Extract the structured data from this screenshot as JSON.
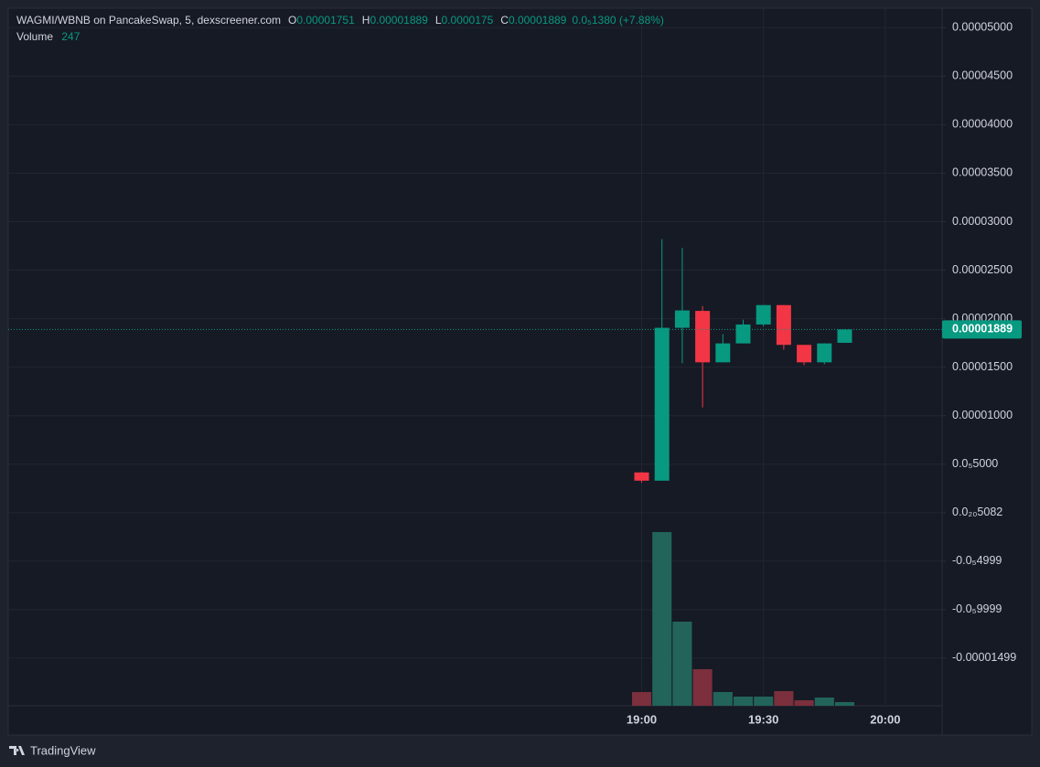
{
  "chart_data": {
    "type": "candlestick",
    "symbol": "WAGMI/WBNB on PancakeSwap, 5, dexscreener.com",
    "ohlc_labels": [
      "O",
      "H",
      "L",
      "C"
    ],
    "change_label": "0.0₅1380 (+7.88%)",
    "volume_label": "Volume",
    "x": [
      "19:00",
      "19:05",
      "19:10",
      "19:15",
      "19:20",
      "19:25",
      "19:30",
      "19:35",
      "19:40",
      "19:45",
      "19:50"
    ],
    "open": [
      4.15e-06,
      3.3e-06,
      1.906e-05,
      2.08e-05,
      1.55e-05,
      1.745e-05,
      1.94e-05,
      2.14e-05,
      1.73e-05,
      1.55e-05,
      1.751e-05
    ],
    "high": [
      4.2e-06,
      2.82e-05,
      2.73e-05,
      2.13e-05,
      1.84e-05,
      1.99e-05,
      2.14e-05,
      2.14e-05,
      1.73e-05,
      1.745e-05,
      1.889e-05
    ],
    "low": [
      3.1e-06,
      3.3e-06,
      1.54e-05,
      1.085e-05,
      1.55e-05,
      1.745e-05,
      1.92e-05,
      1.68e-05,
      1.52e-05,
      1.53e-05,
      1.75e-05
    ],
    "close": [
      3.3e-06,
      1.906e-05,
      2.085e-05,
      1.55e-05,
      1.745e-05,
      1.94e-05,
      2.14e-05,
      1.73e-05,
      1.55e-05,
      1.745e-05,
      1.889e-05
    ],
    "volume": [
      926,
      11733,
      5681,
      2470,
      926,
      618,
      618,
      988,
      371,
      556,
      247
    ],
    "up_color": "#089981",
    "down_color": "#f23645",
    "up_volume_color": "#22645a",
    "down_volume_color": "#7c2f3c",
    "xlim": [
      "16:24",
      "20:14"
    ],
    "xticks": [
      "19:00",
      "19:30",
      "20:00"
    ],
    "ylim": [
      -1.99e-05,
      5.2e-05
    ],
    "yticks": [
      {
        "value": 5e-05,
        "label": "0.00005000"
      },
      {
        "value": 4.5e-05,
        "label": "0.00004500"
      },
      {
        "value": 4e-05,
        "label": "0.00004000"
      },
      {
        "value": 3.5e-05,
        "label": "0.00003500"
      },
      {
        "value": 3e-05,
        "label": "0.00003000"
      },
      {
        "value": 2.5e-05,
        "label": "0.00002500"
      },
      {
        "value": 2e-05,
        "label": "0.00002000"
      },
      {
        "value": 1.5e-05,
        "label": "0.00001500"
      },
      {
        "value": 1e-05,
        "label": "0.00001000"
      },
      {
        "value": 5e-06,
        "label": "0.0₅5000"
      },
      {
        "value": 5.082e-21,
        "label": "0.0₂₀5082"
      },
      {
        "value": -4.999e-06,
        "label": "-0.0₅4999"
      },
      {
        "value": -9.999e-06,
        "label": "-0.0₅9999"
      },
      {
        "value": -1.499e-05,
        "label": "-0.00001499"
      }
    ],
    "grid": true,
    "footer": "TradingView"
  }
}
